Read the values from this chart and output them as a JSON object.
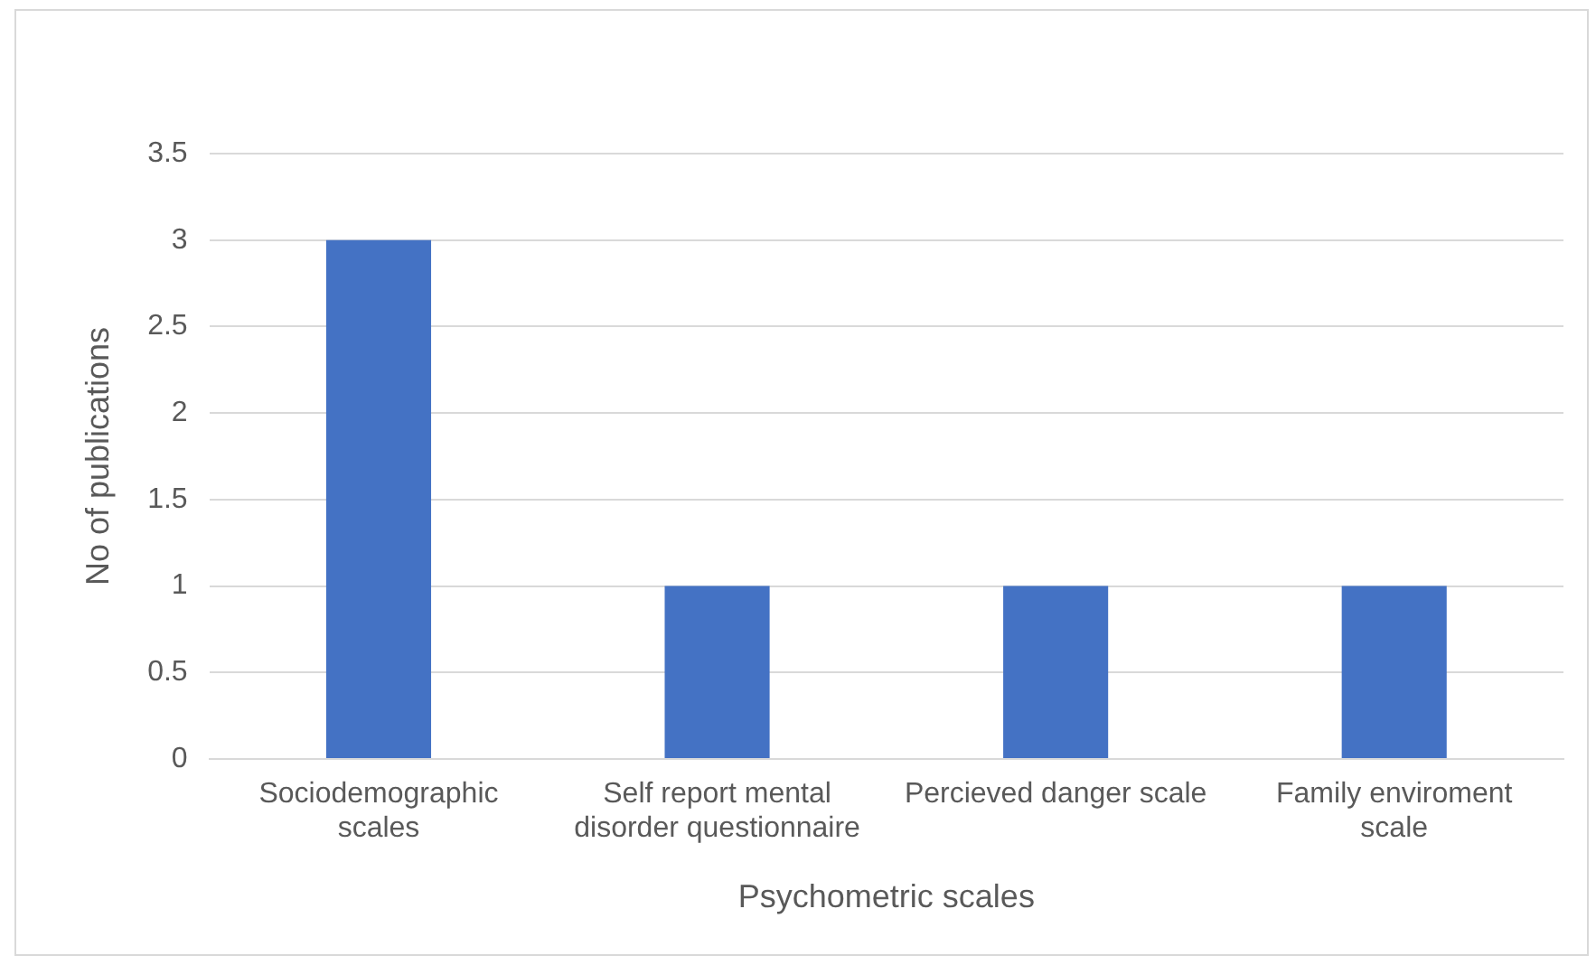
{
  "chart_data": {
    "type": "bar",
    "xlabel": "Psychometric scales",
    "ylabel": "No of publications",
    "categories": [
      "Sociodemographic scales",
      "Self report mental disorder questionnaire",
      "Percieved danger scale",
      "Family enviroment scale"
    ],
    "values": [
      3,
      1,
      1,
      1
    ],
    "color": "#4472c4",
    "ylim": [
      0,
      3.5
    ],
    "yticks": [
      0,
      0.5,
      1,
      1.5,
      2,
      2.5,
      3,
      3.5
    ],
    "grid": "y",
    "legend": false
  }
}
